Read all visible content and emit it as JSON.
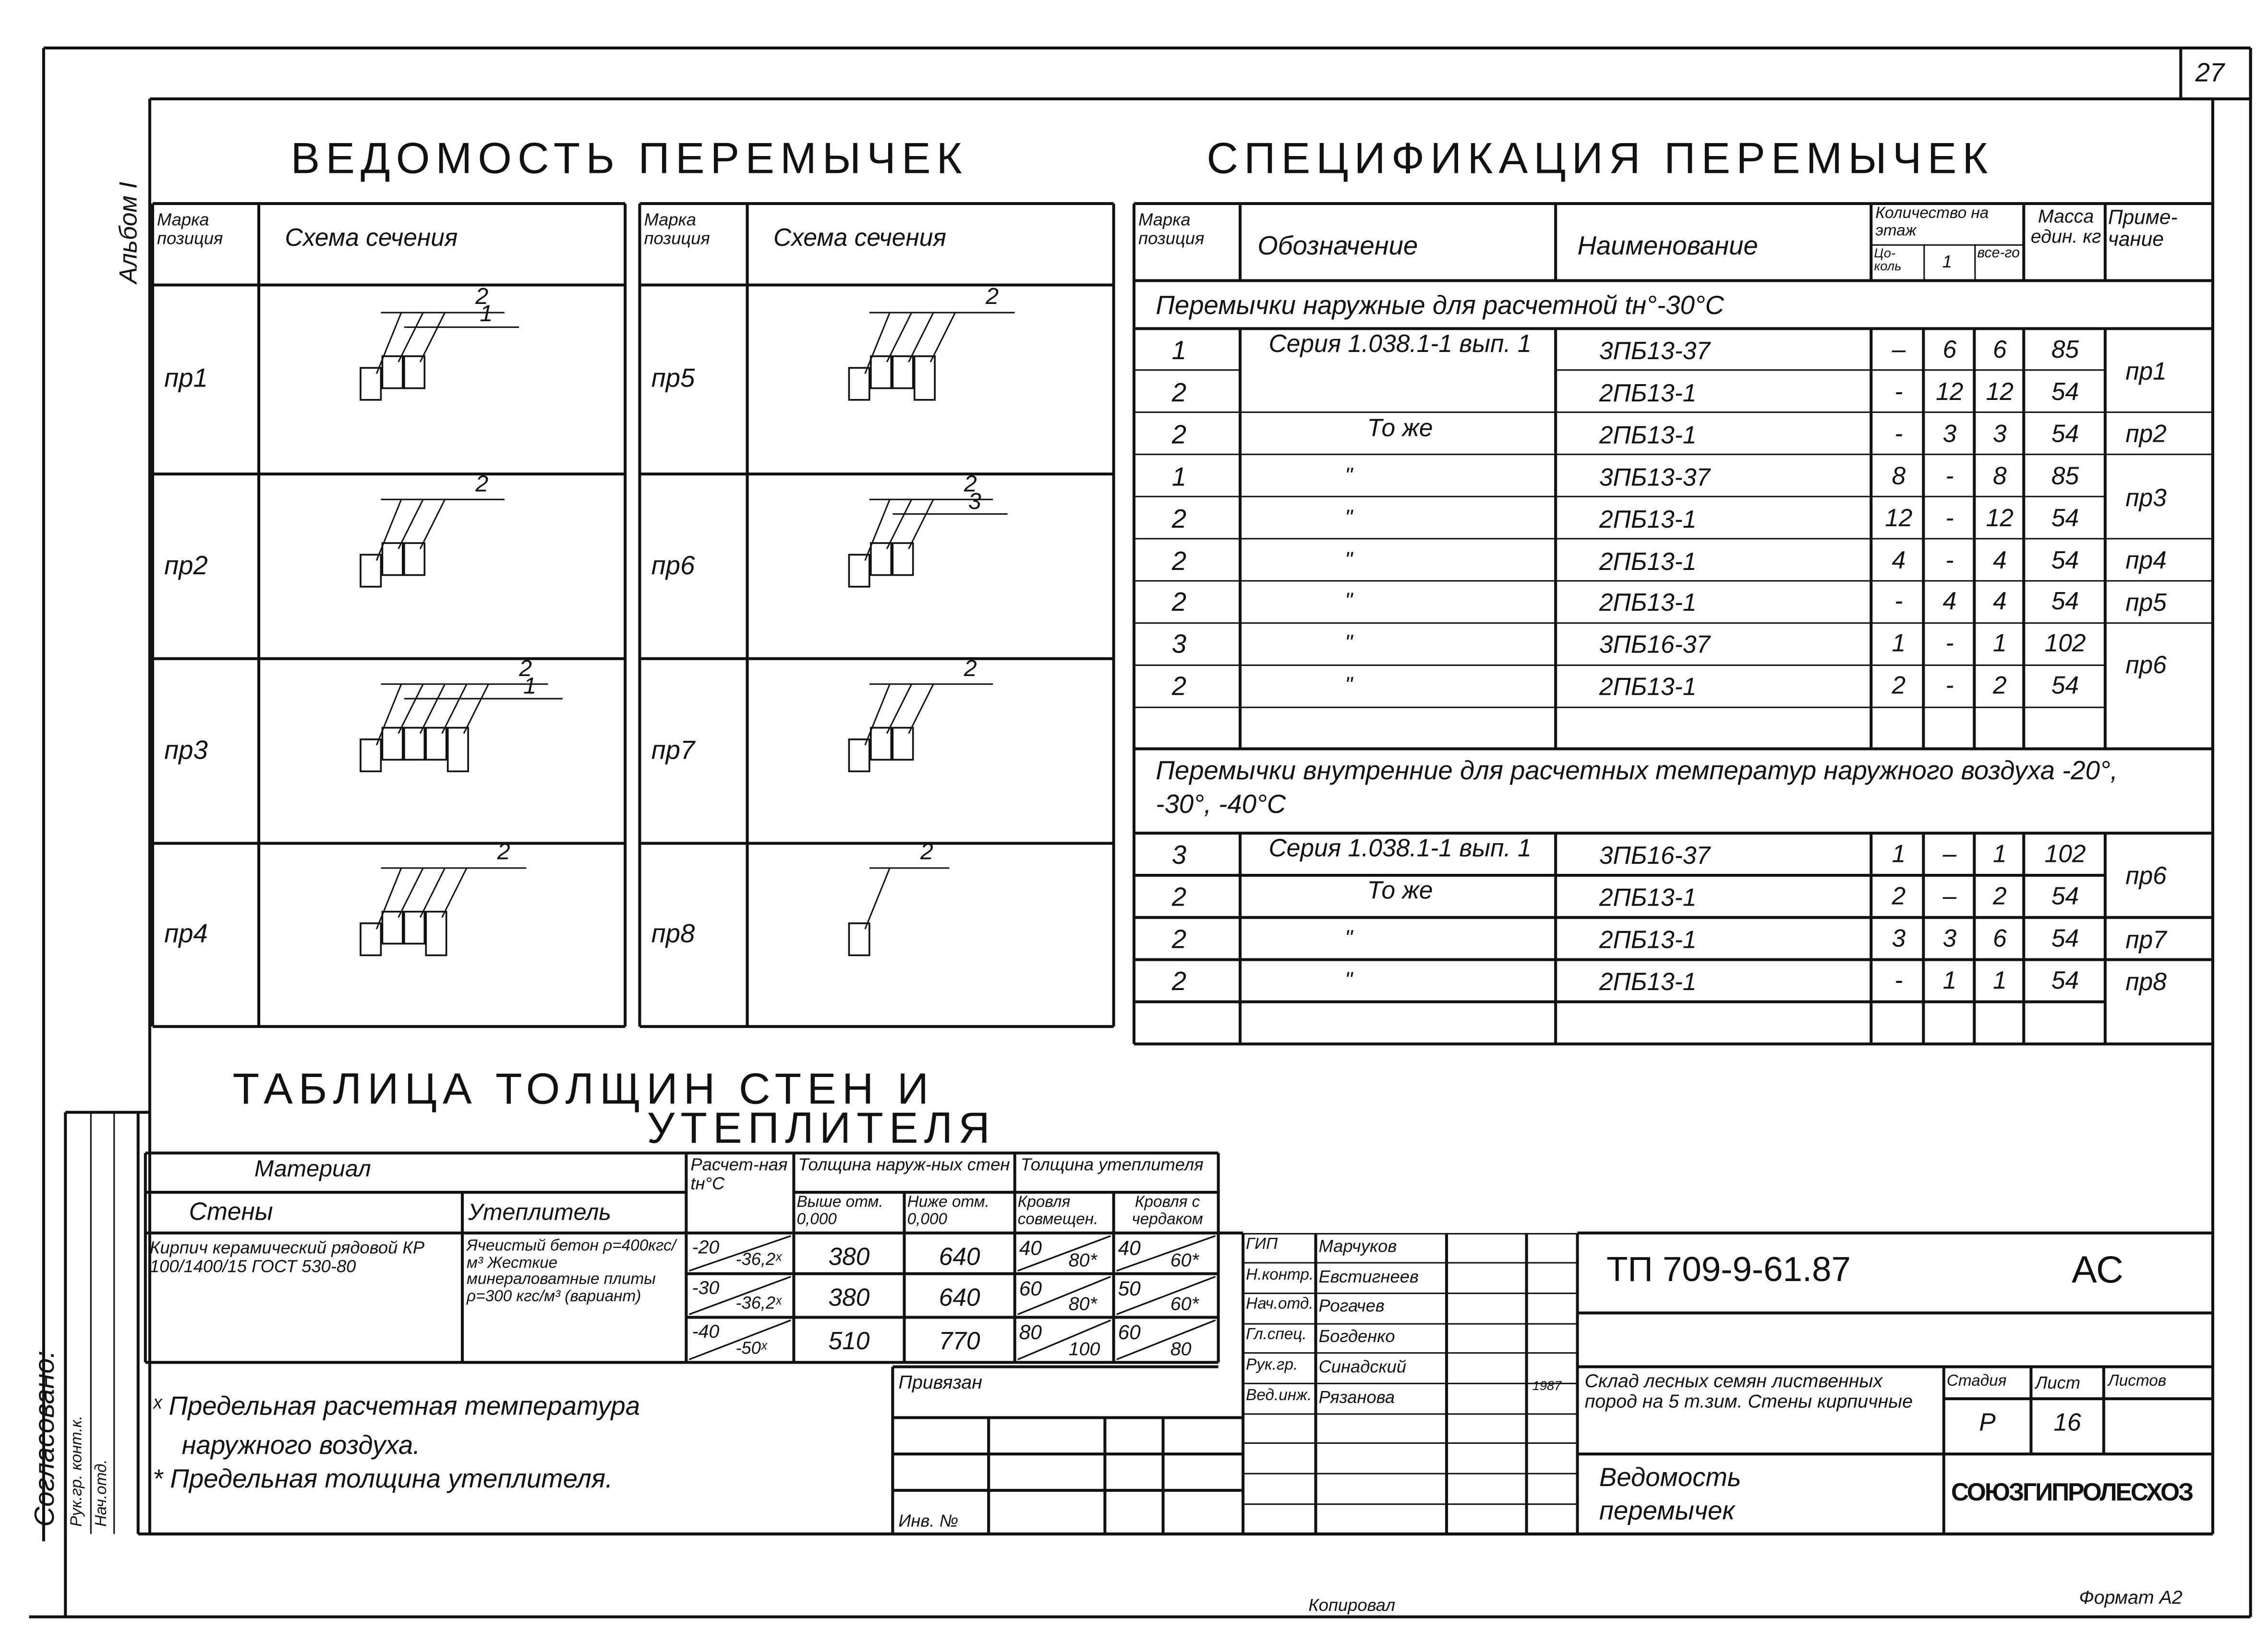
{
  "sheet_number": "27",
  "album": "Альбом I",
  "vedomost": {
    "title": "ВЕДОМОСТЬ ПЕРЕМЫЧЕК",
    "headers": {
      "mark": "Марка позиция",
      "scheme": "Схема сечения"
    },
    "items": [
      {
        "mark": "пр1",
        "bars": 3,
        "labels": [
          "2",
          "1"
        ]
      },
      {
        "mark": "пр2",
        "bars": 3,
        "labels": [
          "2"
        ]
      },
      {
        "mark": "пр3",
        "bars": 5,
        "labels": [
          "2",
          "1"
        ]
      },
      {
        "mark": "пр4",
        "bars": 4,
        "labels": [
          "2"
        ]
      },
      {
        "mark": "пр5",
        "bars": 4,
        "labels": [
          "2"
        ]
      },
      {
        "mark": "пр6",
        "bars": 3,
        "labels": [
          "2",
          "3"
        ]
      },
      {
        "mark": "пр7",
        "bars": 3,
        "labels": [
          "2"
        ]
      },
      {
        "mark": "пр8",
        "bars": 1,
        "labels": [
          "2"
        ]
      }
    ]
  },
  "spec": {
    "title": "СПЕЦИФИКАЦИЯ ПЕРЕМЫЧЕК",
    "headers": {
      "mark": "Марка позиция",
      "designation": "Обозначение",
      "name": "Наименование",
      "qty": "Количество на этаж",
      "qty_cokol": "Цо-коль",
      "qty_1": "1",
      "qty_total": "все-го",
      "mass": "Масса един. кг",
      "note": "Приме-чание"
    },
    "sections": [
      {
        "title": "Перемычки наружные для расчетной tн°-30°C",
        "rows": [
          {
            "pos": "1",
            "designation": "Серия 1.038.1-1 вып. 1",
            "name": "3ПБ13-37",
            "c": "–",
            "f1": "6",
            "t": "6",
            "mass": "85"
          },
          {
            "pos": "2",
            "designation": "",
            "name": "2ПБ13-1",
            "c": "-",
            "f1": "12",
            "t": "12",
            "mass": "54"
          },
          {
            "pos": "2",
            "designation": "То же",
            "name": "2ПБ13-1",
            "c": "-",
            "f1": "3",
            "t": "3",
            "mass": "54"
          },
          {
            "pos": "1",
            "designation": "\"",
            "name": "3ПБ13-37",
            "c": "8",
            "f1": "-",
            "t": "8",
            "mass": "85"
          },
          {
            "pos": "2",
            "designation": "\"",
            "name": "2ПБ13-1",
            "c": "12",
            "f1": "-",
            "t": "12",
            "mass": "54"
          },
          {
            "pos": "2",
            "designation": "\"",
            "name": "2ПБ13-1",
            "c": "4",
            "f1": "-",
            "t": "4",
            "mass": "54"
          },
          {
            "pos": "2",
            "designation": "\"",
            "name": "2ПБ13-1",
            "c": "-",
            "f1": "4",
            "t": "4",
            "mass": "54"
          },
          {
            "pos": "3",
            "designation": "\"",
            "name": "3ПБ16-37",
            "c": "1",
            "f1": "-",
            "t": "1",
            "mass": "102"
          },
          {
            "pos": "2",
            "designation": "\"",
            "name": "2ПБ13-1",
            "c": "2",
            "f1": "-",
            "t": "2",
            "mass": "54"
          }
        ],
        "notes": [
          {
            "text": "пр1",
            "from": 0,
            "to": 1
          },
          {
            "text": "пр2",
            "from": 2,
            "to": 2
          },
          {
            "text": "пр3",
            "from": 3,
            "to": 4
          },
          {
            "text": "пр4",
            "from": 5,
            "to": 5
          },
          {
            "text": "пр5",
            "from": 6,
            "to": 6
          },
          {
            "text": "пр6",
            "from": 7,
            "to": 8
          }
        ]
      },
      {
        "title": "Перемычки внутренние для расчетных температур наружного воздуха -20°, -30°, -40°C",
        "rows": [
          {
            "pos": "3",
            "designation": "Серия 1.038.1-1 вып. 1",
            "name": "3ПБ16-37",
            "c": "1",
            "f1": "–",
            "t": "1",
            "mass": "102"
          },
          {
            "pos": "2",
            "designation": "То же",
            "name": "2ПБ13-1",
            "c": "2",
            "f1": "–",
            "t": "2",
            "mass": "54"
          },
          {
            "pos": "2",
            "designation": "\"",
            "name": "2ПБ13-1",
            "c": "3",
            "f1": "3",
            "t": "6",
            "mass": "54"
          },
          {
            "pos": "2",
            "designation": "\"",
            "name": "2ПБ13-1",
            "c": "-",
            "f1": "1",
            "t": "1",
            "mass": "54"
          }
        ],
        "notes": [
          {
            "text": "пр6",
            "from": 0,
            "to": 1
          },
          {
            "text": "пр7",
            "from": 2,
            "to": 2
          },
          {
            "text": "пр8",
            "from": 3,
            "to": 3
          }
        ]
      }
    ]
  },
  "thickness": {
    "title_line1": "ТАБЛИЦА ТОЛЩИН СТЕН И",
    "title_line2": "УТЕПЛИТЕЛЯ",
    "headers": {
      "material": "Материал",
      "walls": "Стены",
      "insulation": "Утеплитель",
      "temp": "Расчет-ная tн°C",
      "wall_thick": "Толщина наруж-ных стен",
      "above": "Выше отм. 0,000",
      "below": "Ниже отм. 0,000",
      "ins_thick": "Толщина утеплителя",
      "roof_combined": "Кровля совмещен.",
      "roof_attic": "Кровля с чердаком"
    },
    "wall_material": "Кирпич керамический рядовой КР 100/1400/15 ГОСТ 530-80",
    "insulation_material": "Ячеистый бетон ρ=400кгс/м³ Жесткие минераловатные плиты ρ=300 кгс/м³ (вариант)",
    "rows": [
      {
        "temp": "-20",
        "temp_limit": "-36,2ˣ",
        "above": "380",
        "below": "640",
        "rc": "40",
        "rc_limit": "80*",
        "ra": "40",
        "ra_limit": "60*"
      },
      {
        "temp": "-30",
        "temp_limit": "-36,2ˣ",
        "above": "380",
        "below": "640",
        "rc": "60",
        "rc_limit": "80*",
        "ra": "50",
        "ra_limit": "60*"
      },
      {
        "temp": "-40",
        "temp_limit": "-50ˣ",
        "above": "510",
        "below": "770",
        "rc": "80",
        "rc_limit": "100",
        "ra": "60",
        "ra_limit": "80"
      }
    ],
    "notes": [
      "ˣ Предельная расчетная температура",
      "наружного воздуха.",
      "* Предельная толщина утеплителя."
    ]
  },
  "binding": {
    "label": "Привязан",
    "inv": "Инв. №"
  },
  "approval": {
    "label": "Согласовано:",
    "col1": "Рук.гр. конт.к.",
    "col2": "Нач.отд."
  },
  "title_block": {
    "staff": [
      {
        "role": "ГИП",
        "name": "Марчуков"
      },
      {
        "role": "Н.контр.",
        "name": "Евстигнеев"
      },
      {
        "role": "Нач.отд.",
        "name": "Рогачев"
      },
      {
        "role": "Гл.спец.",
        "name": "Богденко"
      },
      {
        "role": "Рук.гр.",
        "name": "Синадский"
      },
      {
        "role": "Вед.инж.",
        "name": "Рязанова"
      }
    ],
    "year": "1987",
    "code": "ТП 709-9-61.87",
    "mark": "АС",
    "project": "Склад лесных семян лиственных пород на 5 т.зим. Стены кирпичные",
    "stage_label": "Стадия",
    "sheet_label": "Лист",
    "sheets_label": "Листов",
    "stage": "Р",
    "sheet": "16",
    "sheet_title": "Ведомость перемычек",
    "organization": "СОЮЗГИПРОЛЕСХОЗ"
  },
  "footer": {
    "copied": "Копировал",
    "format": "Формат А2"
  }
}
